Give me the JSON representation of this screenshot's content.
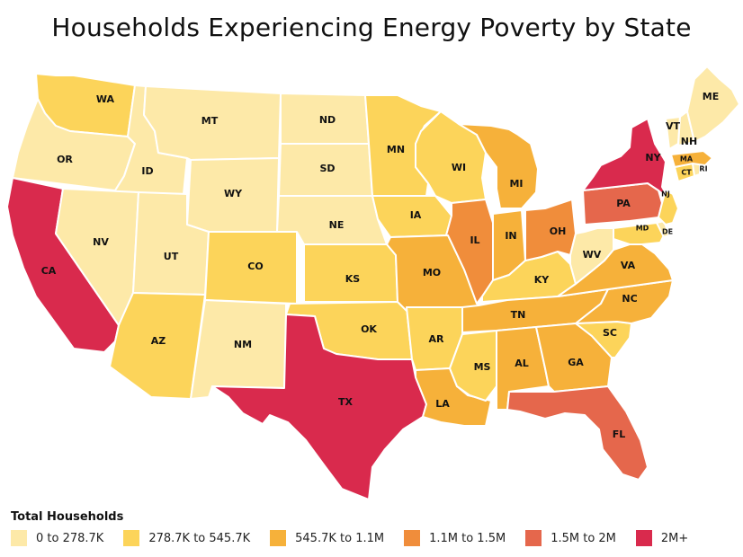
{
  "title": "Households Experiencing Energy Poverty by State",
  "legend": {
    "title": "Total Households",
    "items": [
      {
        "label": "0 to 278.7K",
        "color": "#fde9a8"
      },
      {
        "label": "278.7K to 545.7K",
        "color": "#fcd45a"
      },
      {
        "label": "545.7K to 1.1M",
        "color": "#f6b13a"
      },
      {
        "label": "1.1M to 1.5M",
        "color": "#f08d3b"
      },
      {
        "label": "1.5M to 2M",
        "color": "#e5674c"
      },
      {
        "label": "2M+",
        "color": "#d92a4d"
      }
    ]
  },
  "states": [
    {
      "code": "WA",
      "category": 1
    },
    {
      "code": "OR",
      "category": 0
    },
    {
      "code": "CA",
      "category": 5
    },
    {
      "code": "ID",
      "category": 0
    },
    {
      "code": "NV",
      "category": 0
    },
    {
      "code": "MT",
      "category": 0
    },
    {
      "code": "WY",
      "category": 0
    },
    {
      "code": "UT",
      "category": 0
    },
    {
      "code": "AZ",
      "category": 1
    },
    {
      "code": "CO",
      "category": 1
    },
    {
      "code": "NM",
      "category": 0
    },
    {
      "code": "ND",
      "category": 0
    },
    {
      "code": "SD",
      "category": 0
    },
    {
      "code": "NE",
      "category": 0
    },
    {
      "code": "KS",
      "category": 1
    },
    {
      "code": "OK",
      "category": 1
    },
    {
      "code": "TX",
      "category": 5
    },
    {
      "code": "MN",
      "category": 1
    },
    {
      "code": "IA",
      "category": 1
    },
    {
      "code": "MO",
      "category": 2
    },
    {
      "code": "AR",
      "category": 1
    },
    {
      "code": "LA",
      "category": 2
    },
    {
      "code": "WI",
      "category": 1
    },
    {
      "code": "IL",
      "category": 3
    },
    {
      "code": "MS",
      "category": 1
    },
    {
      "code": "MI",
      "category": 2
    },
    {
      "code": "IN",
      "category": 2
    },
    {
      "code": "KY",
      "category": 1
    },
    {
      "code": "TN",
      "category": 2
    },
    {
      "code": "AL",
      "category": 2
    },
    {
      "code": "OH",
      "category": 3
    },
    {
      "code": "GA",
      "category": 2
    },
    {
      "code": "FL",
      "category": 4
    },
    {
      "code": "SC",
      "category": 1
    },
    {
      "code": "NC",
      "category": 2
    },
    {
      "code": "VA",
      "category": 2
    },
    {
      "code": "WV",
      "category": 0
    },
    {
      "code": "PA",
      "category": 4
    },
    {
      "code": "NY",
      "category": 5
    },
    {
      "code": "MD",
      "category": 1
    },
    {
      "code": "DE",
      "category": 0
    },
    {
      "code": "NJ",
      "category": 1
    },
    {
      "code": "CT",
      "category": 1
    },
    {
      "code": "RI",
      "category": 0
    },
    {
      "code": "MA",
      "category": 2
    },
    {
      "code": "VT",
      "category": 0
    },
    {
      "code": "NH",
      "category": 0
    },
    {
      "code": "ME",
      "category": 0
    }
  ]
}
